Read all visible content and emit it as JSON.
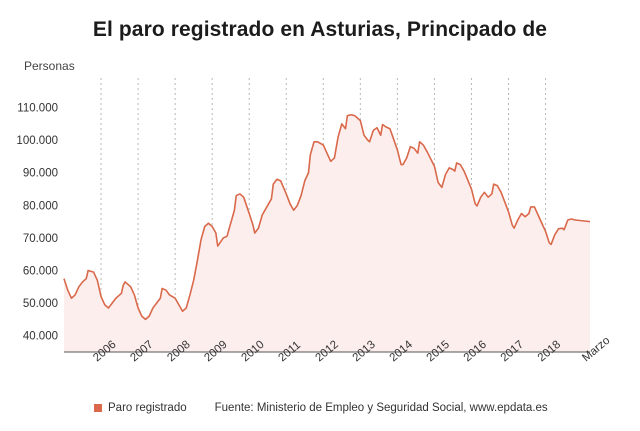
{
  "chart_data": {
    "type": "area",
    "title": "El paro registrado en Asturias, Principado de",
    "ylabel": "Personas",
    "xlabel": "",
    "ylim": [
      35000,
      116000
    ],
    "yticks": [
      40000,
      50000,
      60000,
      70000,
      80000,
      90000,
      100000,
      110000
    ],
    "ytick_labels": [
      "40.000",
      "50.000",
      "60.000",
      "70.000",
      "80.000",
      "90.000",
      "100.000",
      "110.000"
    ],
    "xlim": [
      2005.0,
      2019.2
    ],
    "xticks": [
      {
        "x": 2006.0,
        "label": "2006"
      },
      {
        "x": 2007.0,
        "label": "2007"
      },
      {
        "x": 2008.0,
        "label": "2008"
      },
      {
        "x": 2009.0,
        "label": "2009"
      },
      {
        "x": 2010.0,
        "label": "2010"
      },
      {
        "x": 2011.0,
        "label": "2011"
      },
      {
        "x": 2012.0,
        "label": "2012"
      },
      {
        "x": 2013.0,
        "label": "2013"
      },
      {
        "x": 2014.0,
        "label": "2014"
      },
      {
        "x": 2015.0,
        "label": "2015"
      },
      {
        "x": 2016.0,
        "label": "2016"
      },
      {
        "x": 2017.0,
        "label": "2017"
      },
      {
        "x": 2018.0,
        "label": "2018"
      },
      {
        "x": 2019.2,
        "label": "Marzo"
      }
    ],
    "grid": "vertical dotted",
    "legend_position": "bottom-left",
    "series": [
      {
        "name": "Paro registrado",
        "color": "#d9694a",
        "fill": "#fdeeee",
        "points": [
          [
            2005.0,
            57500
          ],
          [
            2005.1,
            54000
          ],
          [
            2005.2,
            51500
          ],
          [
            2005.3,
            52500
          ],
          [
            2005.4,
            55000
          ],
          [
            2005.5,
            56500
          ],
          [
            2005.6,
            57500
          ],
          [
            2005.65,
            60000
          ],
          [
            2005.8,
            59500
          ],
          [
            2005.9,
            57000
          ],
          [
            2006.0,
            52000
          ],
          [
            2006.1,
            49500
          ],
          [
            2006.2,
            48500
          ],
          [
            2006.3,
            50000
          ],
          [
            2006.4,
            51500
          ],
          [
            2006.5,
            52500
          ],
          [
            2006.55,
            53000
          ],
          [
            2006.6,
            55500
          ],
          [
            2006.65,
            56500
          ],
          [
            2006.8,
            55000
          ],
          [
            2006.9,
            52500
          ],
          [
            2007.0,
            48500
          ],
          [
            2007.1,
            46000
          ],
          [
            2007.2,
            45000
          ],
          [
            2007.3,
            46000
          ],
          [
            2007.4,
            48500
          ],
          [
            2007.5,
            50000
          ],
          [
            2007.6,
            51500
          ],
          [
            2007.65,
            54500
          ],
          [
            2007.75,
            54000
          ],
          [
            2007.85,
            52500
          ],
          [
            2008.0,
            51500
          ],
          [
            2008.1,
            49500
          ],
          [
            2008.2,
            47500
          ],
          [
            2008.3,
            48500
          ],
          [
            2008.4,
            52500
          ],
          [
            2008.5,
            57000
          ],
          [
            2008.6,
            63000
          ],
          [
            2008.7,
            69500
          ],
          [
            2008.8,
            73500
          ],
          [
            2008.9,
            74500
          ],
          [
            2009.0,
            73500
          ],
          [
            2009.1,
            71500
          ],
          [
            2009.15,
            67500
          ],
          [
            2009.3,
            70000
          ],
          [
            2009.4,
            70500
          ],
          [
            2009.5,
            74500
          ],
          [
            2009.6,
            78500
          ],
          [
            2009.65,
            83000
          ],
          [
            2009.75,
            83500
          ],
          [
            2009.85,
            82500
          ],
          [
            2010.0,
            77500
          ],
          [
            2010.1,
            74000
          ],
          [
            2010.15,
            71500
          ],
          [
            2010.25,
            73000
          ],
          [
            2010.35,
            77000
          ],
          [
            2010.5,
            80000
          ],
          [
            2010.6,
            82000
          ],
          [
            2010.65,
            86500
          ],
          [
            2010.75,
            88000
          ],
          [
            2010.85,
            87500
          ],
          [
            2011.0,
            83500
          ],
          [
            2011.1,
            80500
          ],
          [
            2011.2,
            78500
          ],
          [
            2011.3,
            80000
          ],
          [
            2011.4,
            83000
          ],
          [
            2011.5,
            87500
          ],
          [
            2011.6,
            90000
          ],
          [
            2011.65,
            95500
          ],
          [
            2011.75,
            99500
          ],
          [
            2011.85,
            99500
          ],
          [
            2012.0,
            98500
          ],
          [
            2012.1,
            96000
          ],
          [
            2012.2,
            93500
          ],
          [
            2012.3,
            94500
          ],
          [
            2012.4,
            101000
          ],
          [
            2012.5,
            105000
          ],
          [
            2012.6,
            103500
          ],
          [
            2012.65,
            107500
          ],
          [
            2012.75,
            107800
          ],
          [
            2012.85,
            107500
          ],
          [
            2013.0,
            106000
          ],
          [
            2013.1,
            101500
          ],
          [
            2013.2,
            100000
          ],
          [
            2013.25,
            99500
          ],
          [
            2013.35,
            103000
          ],
          [
            2013.45,
            103800
          ],
          [
            2013.55,
            101500
          ],
          [
            2013.6,
            104800
          ],
          [
            2013.7,
            104000
          ],
          [
            2013.8,
            103500
          ],
          [
            2014.0,
            97000
          ],
          [
            2014.1,
            92500
          ],
          [
            2014.15,
            92500
          ],
          [
            2014.25,
            94500
          ],
          [
            2014.35,
            98000
          ],
          [
            2014.45,
            97500
          ],
          [
            2014.55,
            96000
          ],
          [
            2014.6,
            99500
          ],
          [
            2014.7,
            98500
          ],
          [
            2014.8,
            96500
          ],
          [
            2015.0,
            92000
          ],
          [
            2015.1,
            87000
          ],
          [
            2015.2,
            85500
          ],
          [
            2015.3,
            89500
          ],
          [
            2015.4,
            91500
          ],
          [
            2015.5,
            91000
          ],
          [
            2015.55,
            90500
          ],
          [
            2015.6,
            93000
          ],
          [
            2015.7,
            92500
          ],
          [
            2015.8,
            90500
          ],
          [
            2016.0,
            85000
          ],
          [
            2016.1,
            80500
          ],
          [
            2016.15,
            79800
          ],
          [
            2016.25,
            82500
          ],
          [
            2016.35,
            84000
          ],
          [
            2016.45,
            82500
          ],
          [
            2016.55,
            83500
          ],
          [
            2016.6,
            86500
          ],
          [
            2016.7,
            86000
          ],
          [
            2016.8,
            84000
          ],
          [
            2017.0,
            78000
          ],
          [
            2017.1,
            74000
          ],
          [
            2017.15,
            73000
          ],
          [
            2017.25,
            75500
          ],
          [
            2017.35,
            77500
          ],
          [
            2017.45,
            76500
          ],
          [
            2017.55,
            77500
          ],
          [
            2017.6,
            79500
          ],
          [
            2017.7,
            79500
          ],
          [
            2017.8,
            77000
          ],
          [
            2018.0,
            72000
          ],
          [
            2018.1,
            68500
          ],
          [
            2018.15,
            68000
          ],
          [
            2018.25,
            71000
          ],
          [
            2018.35,
            72800
          ],
          [
            2018.45,
            73000
          ],
          [
            2018.5,
            72500
          ],
          [
            2018.6,
            75500
          ],
          [
            2018.7,
            75800
          ],
          [
            2018.8,
            75500
          ],
          [
            2019.2,
            75000
          ]
        ]
      }
    ]
  },
  "legend": {
    "label": "Paro registrado",
    "swatch_color": "#d9694a"
  },
  "source": "Fuente: Ministerio de Empleo y Seguridad Social, www.epdata.es"
}
